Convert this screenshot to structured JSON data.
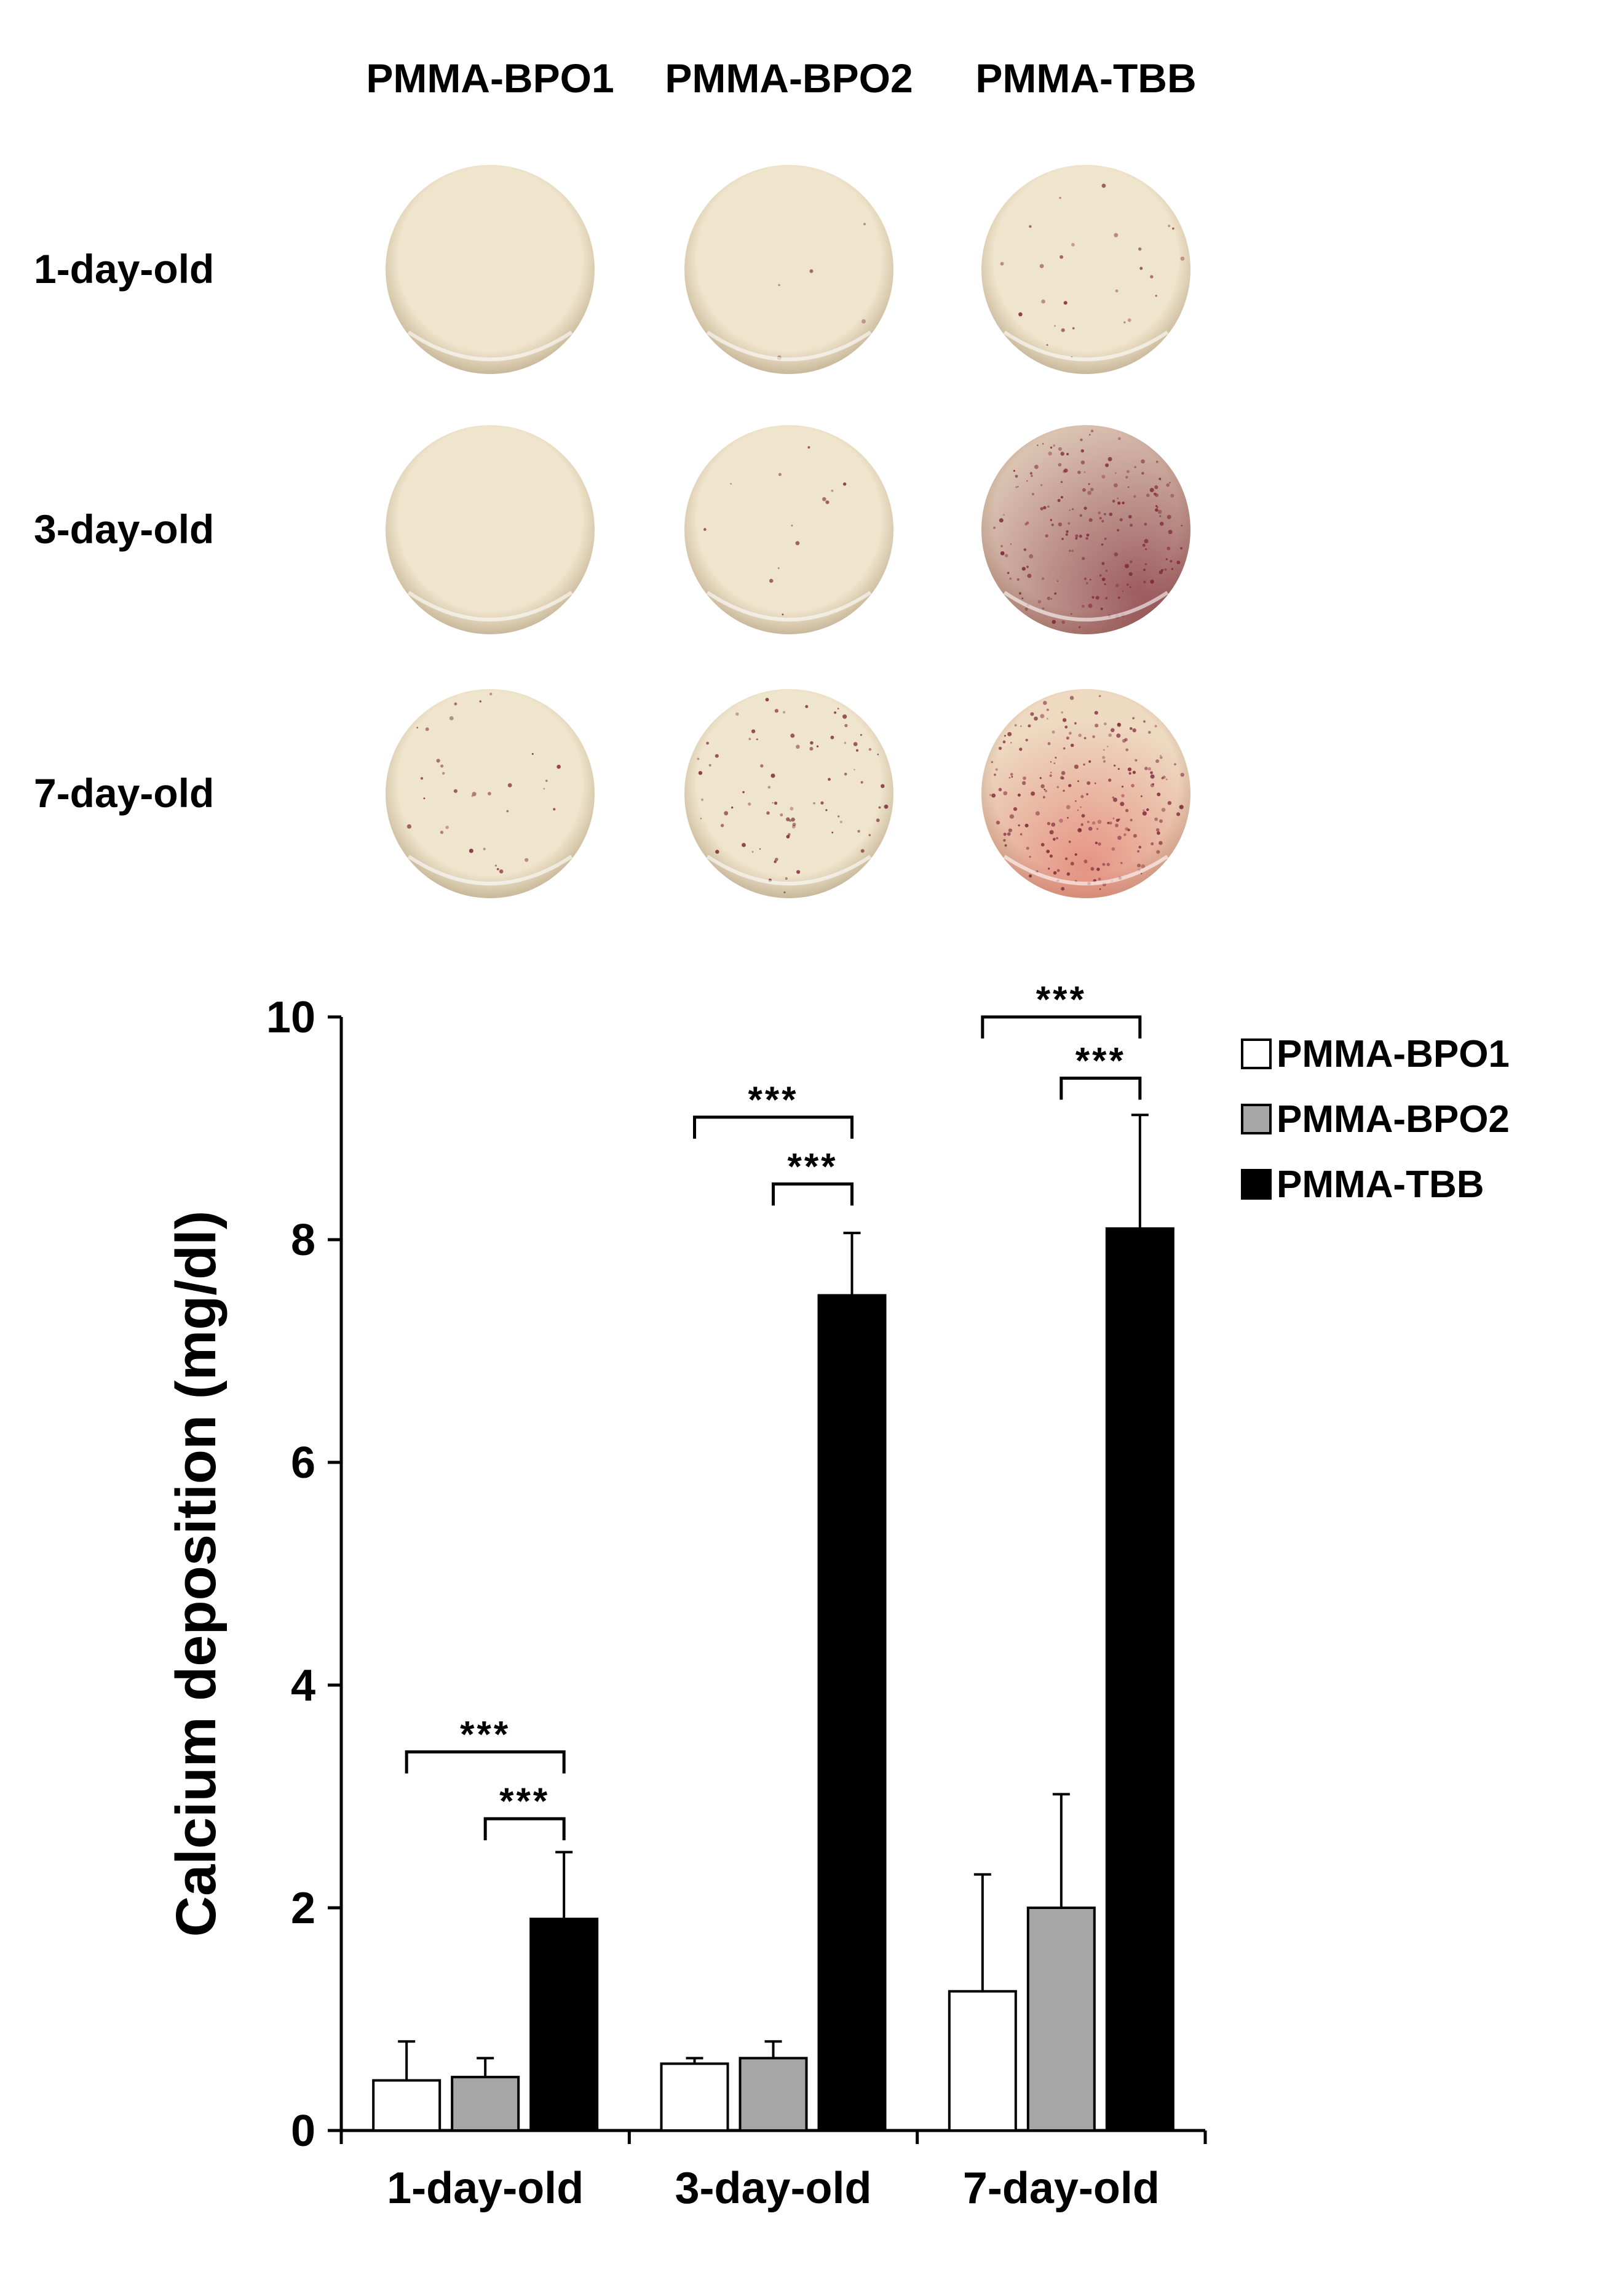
{
  "photo_panel": {
    "columns": [
      "PMMA-BPO1",
      "PMMA-BPO2",
      "PMMA-TBB"
    ],
    "rows": [
      "1-day-old",
      "3-day-old",
      "7-day-old"
    ],
    "stain_levels": [
      [
        0.0,
        0.02,
        0.1
      ],
      [
        0.0,
        0.05,
        0.7
      ],
      [
        0.12,
        0.3,
        0.85
      ]
    ],
    "colors": {
      "disc_base": "#efe5cc",
      "disc_edge": "#c9b89a",
      "stain_dark": "#7a2233",
      "stain_red": "#e0655a"
    }
  },
  "chart_data": {
    "type": "bar",
    "categories": [
      "1-day-old",
      "3-day-old",
      "7-day-old"
    ],
    "series": [
      {
        "name": "PMMA-BPO1",
        "color": "#ffffff",
        "values": [
          0.45,
          0.6,
          1.25
        ],
        "errors": [
          0.35,
          0.05,
          1.05
        ]
      },
      {
        "name": "PMMA-BPO2",
        "color": "#a6a6a6",
        "values": [
          0.48,
          0.65,
          2.0
        ],
        "errors": [
          0.17,
          0.15,
          1.02
        ]
      },
      {
        "name": "PMMA-TBB",
        "color": "#000000",
        "values": [
          1.9,
          7.5,
          8.1
        ],
        "errors": [
          0.6,
          0.56,
          1.02
        ]
      }
    ],
    "ylabel": "Calcium deposition (mg/dl)",
    "xlabel": "",
    "ylim": [
      0,
      10
    ],
    "yticks": [
      "0",
      "2",
      "4",
      "6",
      "8",
      "10"
    ],
    "legend_position": "top-right",
    "grid": false,
    "significance": [
      {
        "category": 0,
        "from_series": 0,
        "to_series": 2,
        "y": 3.4,
        "label": "***"
      },
      {
        "category": 0,
        "from_series": 1,
        "to_series": 2,
        "y": 2.8,
        "label": "***"
      },
      {
        "category": 1,
        "from_series": 0,
        "to_series": 2,
        "y": 9.1,
        "label": "***"
      },
      {
        "category": 1,
        "from_series": 1,
        "to_series": 2,
        "y": 8.5,
        "label": "***"
      },
      {
        "category": 2,
        "from_series": 0,
        "to_series": 2,
        "y": 10.0,
        "label": "***"
      },
      {
        "category": 2,
        "from_series": 1,
        "to_series": 2,
        "y": 9.45,
        "label": "***"
      }
    ]
  }
}
